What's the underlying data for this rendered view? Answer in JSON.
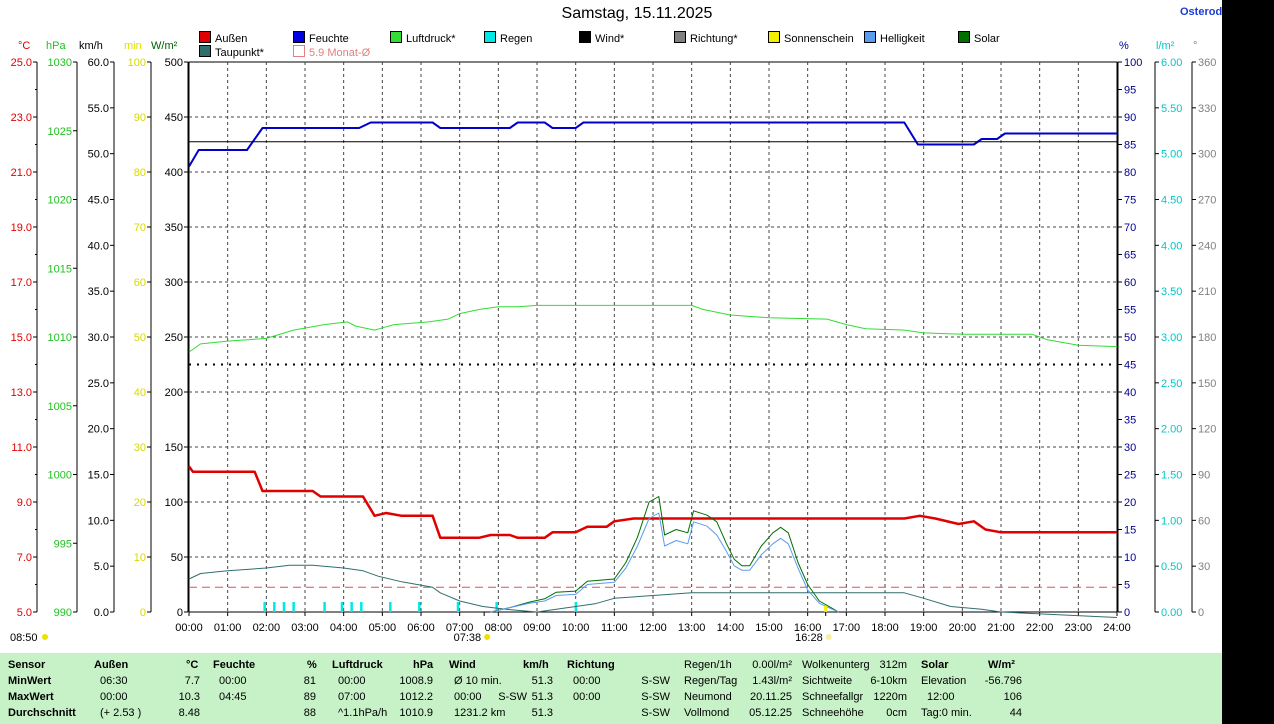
{
  "title": "Samstag, 15.11.2025",
  "brand": "Osterod",
  "legend": [
    {
      "label": "Außen",
      "color": "#e00000"
    },
    {
      "label": "Feuchte",
      "color": "#0000e0"
    },
    {
      "label": "Luftdruck*",
      "color": "#33dd33"
    },
    {
      "label": "Regen",
      "color": "#00e8e8"
    },
    {
      "label": "Wind*",
      "color": "#000000"
    },
    {
      "label": "Richtung*",
      "color": "#808080"
    },
    {
      "label": "Sonnenschein",
      "color": "#f0f000"
    },
    {
      "label": "Helligkeit",
      "color": "#5a9cf0"
    },
    {
      "label": "Solar",
      "color": "#007000"
    },
    {
      "label": "Taupunkt*",
      "color": "#2f6f6f"
    },
    {
      "label": "5.9 Monat-Ø",
      "color": "#e08080"
    }
  ],
  "units_left": [
    {
      "label": "°C",
      "color": "#e00000"
    },
    {
      "label": "hPa",
      "color": "#20c020"
    },
    {
      "label": "km/h",
      "color": "#000000"
    },
    {
      "label": "min",
      "color": "#e0e000"
    },
    {
      "label": "W/m²",
      "color": "#006000"
    }
  ],
  "units_right": [
    {
      "label": "%",
      "color": "#000090"
    },
    {
      "label": "l/m²",
      "color": "#00c8c8"
    },
    {
      "label": "°",
      "color": "#808080"
    }
  ],
  "sun": {
    "rise_left": "08:50",
    "rise": "07:38",
    "set": "16:28"
  },
  "table": {
    "headers": {
      "sensor": "Sensor",
      "aussen": "Außen",
      "aussen_u": "°C",
      "feuchte": "Feuchte",
      "feuchte_u": "%",
      "luft": "Luftdruck",
      "luft_u": "hPa",
      "wind": "Wind",
      "wind_u": "km/h",
      "richtung": "Richtung",
      "solar": "Solar",
      "solar_u": "W/m²"
    },
    "rows": [
      {
        "label": "MinWert",
        "a_t": "06:30",
        "a_v": "7.7",
        "f_t": "00:00",
        "f_v": "81",
        "l_t": "00:00",
        "l_v": "1008.9",
        "w_t": "Ø 10 min.",
        "w_d": "",
        "w_v": "51.3",
        "r_t": "00:00",
        "r_v": "S-SW"
      },
      {
        "label": "MaxWert",
        "a_t": "00:00",
        "a_v": "10.3",
        "f_t": "04:45",
        "f_v": "89",
        "l_t": "07:00",
        "l_v": "1012.2",
        "w_t": "00:00",
        "w_d": "S-SW",
        "w_v": "51.3",
        "r_t": "00:00",
        "r_v": "S-SW"
      },
      {
        "label": "Durchschnitt",
        "a_t": "(+ 2.53 )",
        "a_v": "8.48",
        "f_t": "",
        "f_v": "88",
        "l_t": "^1.1hPa/h",
        "l_v": "1010.9",
        "w_t": "1231.2 km",
        "w_d": "",
        "w_v": "51.3",
        "r_t": "",
        "r_v": "S-SW"
      }
    ],
    "extra1": [
      [
        "Regen/1h",
        "0.00l/m²"
      ],
      [
        "Regen/Tag",
        "1.43l/m²"
      ],
      [
        "Neumond",
        "20.11.25"
      ],
      [
        "Vollmond",
        "05.12.25"
      ]
    ],
    "extra2": [
      [
        "Wolkenunterg",
        "312m"
      ],
      [
        "Sichtweite",
        "6-10km"
      ],
      [
        "Schneefallgr",
        "1220m"
      ],
      [
        "Schneehöhe",
        "0cm"
      ]
    ],
    "extra3": [
      [
        "Elevation",
        "-56.796"
      ],
      [
        "12:00",
        "106"
      ],
      [
        "Tag:0 min.",
        "44"
      ]
    ]
  },
  "chart_data": {
    "type": "line",
    "x_label_ticks": [
      "00:00",
      "01:00",
      "02:00",
      "03:00",
      "04:00",
      "05:00",
      "06:00",
      "07:00",
      "08:00",
      "09:00",
      "10:00",
      "11:00",
      "12:00",
      "13:00",
      "14:00",
      "15:00",
      "16:00",
      "17:00",
      "18:00",
      "19:00",
      "20:00",
      "21:00",
      "22:00",
      "23:00",
      "24:00"
    ],
    "x_unit": "hours",
    "xlim": [
      0,
      24
    ],
    "axes_left": {
      "temp_c": {
        "ticks": [
          "5.0",
          "7.0",
          "9.0",
          "11.0",
          "13.0",
          "15.0",
          "17.0",
          "19.0",
          "21.0",
          "23.0",
          "25.0"
        ],
        "ylim": [
          5,
          25
        ]
      },
      "pressure_hpa": {
        "ticks": [
          "990",
          "995",
          "1000",
          "1005",
          "1010",
          "1015",
          "1020",
          "1025",
          "1030"
        ],
        "ylim": [
          990,
          1030
        ]
      },
      "wind_kmh": {
        "ticks": [
          "0.0",
          "5.0",
          "10.0",
          "15.0",
          "20.0",
          "25.0",
          "30.0",
          "35.0",
          "40.0",
          "45.0",
          "50.0",
          "55.0",
          "60.0"
        ],
        "ylim": [
          0,
          60
        ]
      },
      "sun_min": {
        "ticks": [
          "0",
          "10",
          "20",
          "30",
          "40",
          "50",
          "60",
          "70",
          "80",
          "90",
          "100"
        ],
        "ylim": [
          0,
          100
        ]
      },
      "solar_wm2": {
        "ticks": [
          "0",
          "50",
          "100",
          "150",
          "200",
          "250",
          "300",
          "350",
          "400",
          "450",
          "500"
        ],
        "ylim": [
          0,
          500
        ]
      }
    },
    "axes_right": {
      "humidity_pct": {
        "ticks": [
          "0",
          "5",
          "10",
          "15",
          "20",
          "25",
          "30",
          "35",
          "40",
          "45",
          "50",
          "55",
          "60",
          "65",
          "70",
          "75",
          "80",
          "85",
          "90",
          "95",
          "100"
        ],
        "ylim": [
          0,
          100
        ]
      },
      "rain_lm2": {
        "ticks": [
          "0.00",
          "0.50",
          "1.00",
          "1.50",
          "2.00",
          "2.50",
          "3.00",
          "3.50",
          "4.00",
          "4.50",
          "5.00",
          "5.50",
          "6.00"
        ],
        "ylim": [
          0,
          6
        ]
      },
      "direction_deg": {
        "ticks": [
          "0",
          "30",
          "60",
          "90",
          "120",
          "150",
          "180",
          "210",
          "240",
          "270",
          "300",
          "330",
          "360"
        ],
        "ylim": [
          0,
          360
        ]
      }
    },
    "series": [
      {
        "key": "aussen",
        "axis": "temp_c",
        "color": "#e00000",
        "width": 2.5,
        "points": [
          [
            0,
            10.3
          ],
          [
            0.1,
            10.1
          ],
          [
            1,
            10.1
          ],
          [
            1.7,
            10.1
          ],
          [
            1.9,
            9.4
          ],
          [
            3.2,
            9.4
          ],
          [
            3.4,
            9.2
          ],
          [
            4.5,
            9.2
          ],
          [
            4.8,
            8.5
          ],
          [
            5.1,
            8.6
          ],
          [
            5.5,
            8.5
          ],
          [
            6.3,
            8.5
          ],
          [
            6.5,
            7.7
          ],
          [
            7.5,
            7.7
          ],
          [
            7.8,
            7.8
          ],
          [
            8.3,
            7.8
          ],
          [
            8.5,
            7.7
          ],
          [
            9.2,
            7.7
          ],
          [
            9.4,
            7.9
          ],
          [
            10,
            7.9
          ],
          [
            10.3,
            8.1
          ],
          [
            10.8,
            8.1
          ],
          [
            11,
            8.3
          ],
          [
            11.5,
            8.4
          ],
          [
            18.5,
            8.4
          ],
          [
            18.9,
            8.5
          ],
          [
            19.3,
            8.4
          ],
          [
            19.9,
            8.2
          ],
          [
            20.3,
            8.3
          ],
          [
            20.6,
            8.0
          ],
          [
            21,
            7.9
          ],
          [
            24,
            7.9
          ]
        ]
      },
      {
        "key": "feuchte",
        "axis": "humidity_pct",
        "color": "#0000c8",
        "width": 2,
        "points": [
          [
            0,
            81
          ],
          [
            0.25,
            84
          ],
          [
            1.5,
            84
          ],
          [
            1.9,
            88
          ],
          [
            4.4,
            88
          ],
          [
            4.7,
            89
          ],
          [
            6.3,
            89
          ],
          [
            6.5,
            88
          ],
          [
            8.3,
            88
          ],
          [
            8.5,
            89
          ],
          [
            9.2,
            89
          ],
          [
            9.4,
            88
          ],
          [
            10,
            88
          ],
          [
            10.2,
            89
          ],
          [
            18.5,
            89
          ],
          [
            18.85,
            85
          ],
          [
            20.3,
            85
          ],
          [
            20.5,
            86
          ],
          [
            20.9,
            86
          ],
          [
            21.1,
            87
          ],
          [
            24,
            87
          ]
        ]
      },
      {
        "key": "luftdruck",
        "axis": "pressure_hpa",
        "color": "#33dd33",
        "width": 1,
        "points": [
          [
            0,
            1008.9
          ],
          [
            0.3,
            1009.5
          ],
          [
            1,
            1009.7
          ],
          [
            2,
            1009.9
          ],
          [
            2.7,
            1010.5
          ],
          [
            3.5,
            1010.9
          ],
          [
            4.1,
            1011.1
          ],
          [
            4.3,
            1010.8
          ],
          [
            4.8,
            1010.5
          ],
          [
            5.3,
            1010.9
          ],
          [
            6.2,
            1011.1
          ],
          [
            6.7,
            1011.3
          ],
          [
            7,
            1011.7
          ],
          [
            7.5,
            1012.0
          ],
          [
            8,
            1012.2
          ],
          [
            8.5,
            1012.2
          ],
          [
            9,
            1012.3
          ],
          [
            13,
            1012.3
          ],
          [
            13.3,
            1012.0
          ],
          [
            14,
            1011.6
          ],
          [
            15,
            1011.4
          ],
          [
            16.5,
            1011.3
          ],
          [
            17,
            1010.9
          ],
          [
            17.5,
            1010.6
          ],
          [
            18.5,
            1010.5
          ],
          [
            19,
            1010.3
          ],
          [
            20,
            1010.2
          ],
          [
            21.8,
            1010.2
          ],
          [
            22.2,
            1009.8
          ],
          [
            23,
            1009.4
          ],
          [
            24,
            1009.3
          ]
        ]
      },
      {
        "key": "taupunkt",
        "axis": "temp_c",
        "color": "#2f6f6f",
        "width": 1,
        "points": [
          [
            0,
            6.2
          ],
          [
            0.3,
            6.4
          ],
          [
            1,
            6.5
          ],
          [
            2,
            6.6
          ],
          [
            2.6,
            6.7
          ],
          [
            3.2,
            6.7
          ],
          [
            4,
            6.6
          ],
          [
            4.5,
            6.5
          ],
          [
            4.9,
            6.3
          ],
          [
            5.5,
            6.1
          ],
          [
            6.3,
            5.9
          ],
          [
            6.5,
            5.7
          ],
          [
            7,
            5.4
          ],
          [
            7.6,
            5.2
          ],
          [
            8.2,
            5.1
          ],
          [
            9,
            5.0
          ],
          [
            10,
            5.2
          ],
          [
            10.5,
            5.3
          ],
          [
            11,
            5.5
          ],
          [
            12,
            5.6
          ],
          [
            13,
            5.7
          ],
          [
            17,
            5.7
          ],
          [
            18.5,
            5.7
          ],
          [
            19,
            5.5
          ],
          [
            19.7,
            5.2
          ],
          [
            20.5,
            5.1
          ],
          [
            21,
            5.0
          ],
          [
            24,
            4.8
          ]
        ]
      },
      {
        "key": "wind",
        "axis": "wind_kmh",
        "color": "#000000",
        "width": 1,
        "points": [
          [
            0,
            51.3
          ],
          [
            24,
            51.3
          ]
        ]
      },
      {
        "key": "solar",
        "axis": "solar_wm2",
        "color": "#007000",
        "width": 1,
        "points": [
          [
            7.8,
            0
          ],
          [
            8.3,
            4
          ],
          [
            8.8,
            9
          ],
          [
            9.2,
            12
          ],
          [
            9.5,
            18
          ],
          [
            10,
            19
          ],
          [
            10.3,
            28
          ],
          [
            11,
            30
          ],
          [
            11.3,
            45
          ],
          [
            11.6,
            68
          ],
          [
            11.9,
            100
          ],
          [
            12.15,
            105
          ],
          [
            12.3,
            70
          ],
          [
            12.6,
            75
          ],
          [
            12.9,
            72
          ],
          [
            13.05,
            92
          ],
          [
            13.4,
            88
          ],
          [
            13.65,
            82
          ],
          [
            13.9,
            62
          ],
          [
            14.1,
            48
          ],
          [
            14.3,
            42
          ],
          [
            14.5,
            42
          ],
          [
            14.8,
            60
          ],
          [
            15.1,
            72
          ],
          [
            15.3,
            77
          ],
          [
            15.5,
            72
          ],
          [
            15.75,
            45
          ],
          [
            16,
            25
          ],
          [
            16.3,
            10
          ],
          [
            16.6,
            4
          ],
          [
            16.8,
            0
          ]
        ]
      },
      {
        "key": "helligkeit",
        "axis": "solar_wm2",
        "color": "#5a9cf0",
        "width": 1,
        "points": [
          [
            7.8,
            0
          ],
          [
            8.3,
            4
          ],
          [
            8.8,
            8
          ],
          [
            9.2,
            10
          ],
          [
            9.5,
            15
          ],
          [
            10,
            16
          ],
          [
            10.3,
            25
          ],
          [
            11,
            27
          ],
          [
            11.3,
            40
          ],
          [
            11.6,
            60
          ],
          [
            11.9,
            85
          ],
          [
            12.15,
            90
          ],
          [
            12.3,
            60
          ],
          [
            12.6,
            65
          ],
          [
            12.9,
            62
          ],
          [
            13.05,
            82
          ],
          [
            13.4,
            78
          ],
          [
            13.65,
            70
          ],
          [
            13.9,
            55
          ],
          [
            14.1,
            42
          ],
          [
            14.3,
            38
          ],
          [
            14.5,
            38
          ],
          [
            14.8,
            52
          ],
          [
            15.1,
            62
          ],
          [
            15.3,
            67
          ],
          [
            15.5,
            62
          ],
          [
            15.75,
            40
          ],
          [
            16,
            20
          ],
          [
            16.3,
            8
          ],
          [
            16.6,
            3
          ],
          [
            16.8,
            0
          ]
        ]
      }
    ],
    "rain_bars": {
      "color": "#00e8e8",
      "unit": "l/m²",
      "times": [
        1.95,
        2.2,
        2.45,
        2.7,
        3.5,
        3.95,
        4.2,
        4.45,
        5.2,
        5.95,
        6.95,
        7.95,
        10.0
      ]
    },
    "month_avg_temp": {
      "value": 5.9,
      "color": "#e05050"
    },
    "dotted_line_wind_kmh": 27.0
  }
}
